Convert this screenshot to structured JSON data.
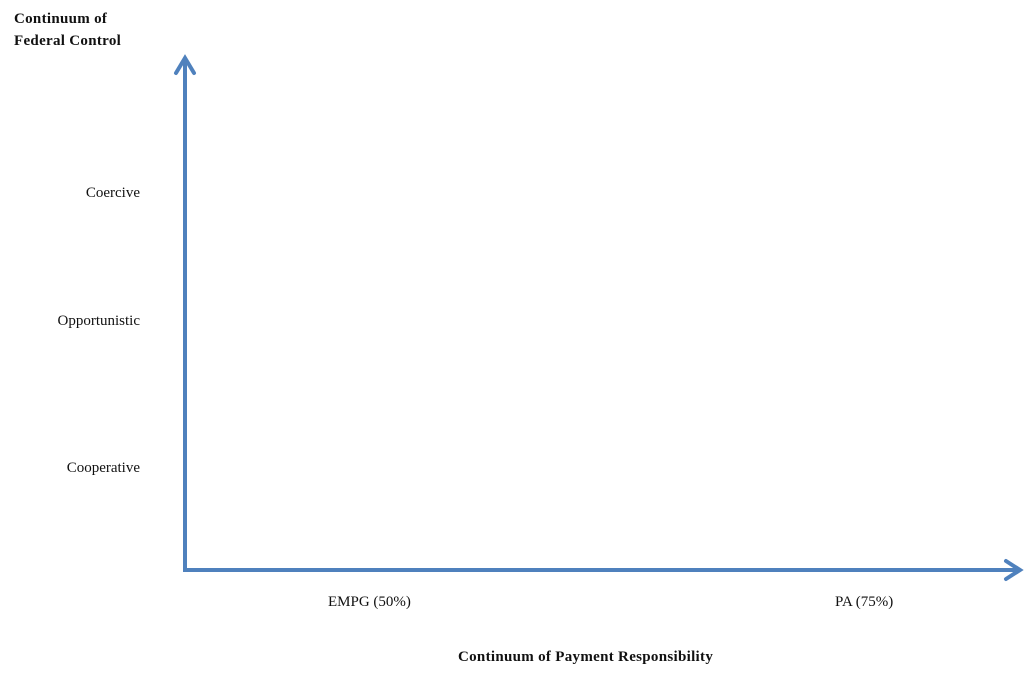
{
  "y_axis": {
    "title_line1": "Continuum of",
    "title_line2": "Federal Control",
    "categories": [
      "Coercive",
      "Opportunistic",
      "Cooperative"
    ]
  },
  "x_axis": {
    "title": "Continuum of Payment Responsibility",
    "categories": [
      "EMPG (50%)",
      "PA (75%)"
    ]
  },
  "colors": {
    "axis": "#4f81bd"
  }
}
